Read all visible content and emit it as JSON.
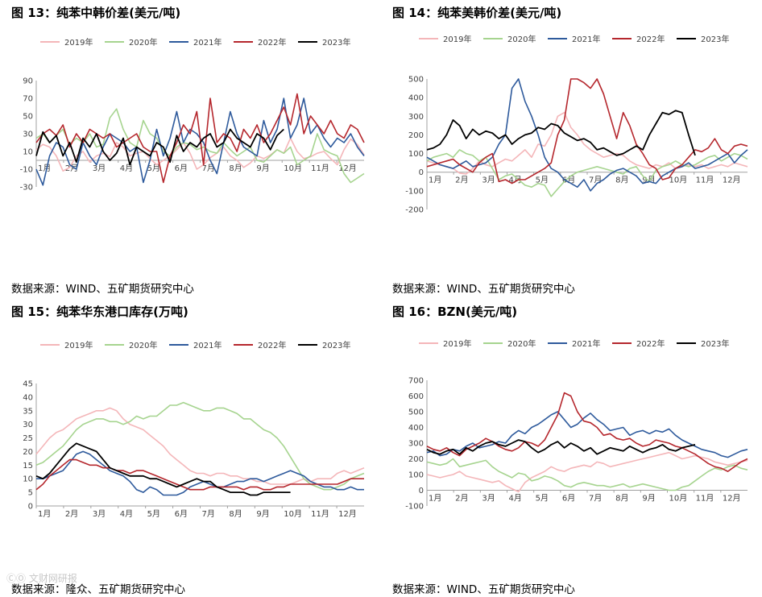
{
  "series_colors": {
    "2019年": "#f4b6b9",
    "2020年": "#a6d48f",
    "2021年": "#2e5a9c",
    "2022年": "#b5272d",
    "2023年": "#000000"
  },
  "watermark": "ⒸⓄ 文财网研报",
  "chart_data": [
    {
      "id": "fig13",
      "type": "line",
      "title": "图 13：纯苯中韩价差(美元/吨)",
      "source": "数据来源：WIND、五矿期货研究中心",
      "months": [
        "1月",
        "2月",
        "3月",
        "4月",
        "5月",
        "6月",
        "7月",
        "8月",
        "9月",
        "10月",
        "11月",
        "12月"
      ],
      "legend": [
        "2019年",
        "2020年",
        "2021年",
        "2022年",
        "2023年"
      ],
      "yticks": [
        90,
        70,
        50,
        30,
        10,
        -10,
        -30
      ],
      "ylim": [
        -30,
        90
      ],
      "series": [
        {
          "name": "2019年",
          "values": [
            12,
            18,
            15,
            5,
            -12,
            -8,
            5,
            10,
            -2,
            5,
            8,
            4,
            20,
            15,
            5,
            8,
            10,
            2,
            -5,
            0,
            5,
            12,
            20,
            8,
            -10,
            -5,
            3,
            8,
            15,
            5,
            0,
            -8,
            -3,
            5,
            2,
            6,
            12,
            8,
            25,
            10,
            2,
            4,
            8,
            10,
            2,
            -5,
            12,
            24,
            18,
            6
          ]
        },
        {
          "name": "2020年",
          "values": [
            25,
            30,
            20,
            28,
            35,
            18,
            25,
            20,
            30,
            15,
            18,
            48,
            58,
            35,
            20,
            15,
            45,
            30,
            25,
            10,
            5,
            15,
            20,
            18,
            12,
            15,
            10,
            8,
            20,
            12,
            5,
            10,
            15,
            0,
            -2,
            5,
            12,
            8,
            15,
            -5,
            0,
            5,
            30,
            12,
            8,
            5,
            -15,
            -25,
            -20,
            -15
          ]
        },
        {
          "name": "2021年",
          "values": [
            -10,
            -28,
            5,
            20,
            15,
            -5,
            -10,
            20,
            5,
            -5,
            15,
            30,
            25,
            20,
            10,
            15,
            -25,
            0,
            35,
            5,
            25,
            55,
            20,
            35,
            30,
            20,
            0,
            -15,
            20,
            55,
            30,
            15,
            10,
            5,
            45,
            20,
            35,
            70,
            25,
            40,
            70,
            30,
            40,
            25,
            15,
            25,
            20,
            30,
            15,
            5
          ]
        },
        {
          "name": "2022年",
          "values": [
            20,
            30,
            35,
            28,
            40,
            15,
            30,
            20,
            35,
            30,
            25,
            30,
            15,
            20,
            25,
            30,
            15,
            10,
            10,
            -25,
            5,
            20,
            40,
            30,
            55,
            -5,
            70,
            20,
            30,
            25,
            10,
            35,
            25,
            40,
            20,
            30,
            45,
            60,
            40,
            75,
            30,
            50,
            40,
            30,
            45,
            30,
            25,
            40,
            35,
            20
          ]
        },
        {
          "name": "2023年",
          "values": [
            5,
            32,
            20,
            28,
            5,
            20,
            -2,
            25,
            15,
            30,
            10,
            0,
            8,
            25,
            -5,
            15,
            10,
            5,
            20,
            15,
            -2,
            28,
            10,
            20,
            15,
            25,
            30,
            15,
            20,
            35,
            25,
            20,
            15,
            30,
            25,
            12,
            28,
            35
          ]
        }
      ]
    },
    {
      "id": "fig14",
      "type": "line",
      "title": "图 14：纯苯美韩价差(美元/吨)",
      "source": "数据来源：WIND、五矿期货研究中心",
      "months": [
        "1月",
        "2月",
        "3月",
        "4月",
        "5月",
        "6月",
        "7月",
        "8月",
        "9月",
        "10月",
        "11月",
        "12月"
      ],
      "legend": [
        "2019年",
        "2020年",
        "2021年",
        "2022年",
        "2023年"
      ],
      "yticks": [
        500,
        400,
        300,
        200,
        100,
        0,
        -100,
        -200
      ],
      "ylim": [
        -200,
        500
      ],
      "series": [
        {
          "name": "2019年",
          "values": [
            60,
            50,
            40,
            30,
            20,
            -5,
            -10,
            20,
            60,
            40,
            30,
            50,
            70,
            60,
            90,
            120,
            80,
            150,
            140,
            200,
            300,
            320,
            240,
            200,
            150,
            120,
            100,
            80,
            90,
            100,
            90,
            60,
            40,
            30,
            20,
            40,
            30,
            50,
            20,
            30,
            40,
            30,
            40,
            20,
            30,
            40,
            30,
            50,
            40,
            30
          ]
        },
        {
          "name": "2020年",
          "values": [
            60,
            80,
            90,
            100,
            80,
            120,
            100,
            90,
            60,
            80,
            20,
            -40,
            -20,
            -10,
            -40,
            -70,
            -80,
            -60,
            -70,
            -130,
            -90,
            -50,
            -20,
            0,
            10,
            20,
            30,
            20,
            10,
            0,
            -10,
            20,
            30,
            -20,
            -50,
            10,
            30,
            40,
            60,
            40,
            30,
            40,
            60,
            80,
            90,
            60,
            80,
            100,
            90,
            70
          ]
        },
        {
          "name": "2021年",
          "values": [
            80,
            60,
            40,
            30,
            20,
            40,
            60,
            30,
            40,
            50,
            80,
            150,
            200,
            450,
            500,
            380,
            300,
            200,
            80,
            20,
            0,
            -40,
            -60,
            -80,
            -40,
            -100,
            -60,
            -40,
            -10,
            10,
            20,
            0,
            -20,
            -60,
            -50,
            -60,
            -20,
            0,
            20,
            30,
            50,
            20,
            30,
            40,
            60,
            80,
            100,
            50,
            90,
            120
          ]
        },
        {
          "name": "2022年",
          "values": [
            30,
            40,
            50,
            60,
            70,
            40,
            20,
            0,
            50,
            80,
            100,
            -50,
            -40,
            -60,
            -40,
            -40,
            -20,
            0,
            20,
            50,
            200,
            280,
            500,
            500,
            480,
            450,
            500,
            420,
            300,
            180,
            320,
            250,
            150,
            100,
            40,
            20,
            -40,
            -30,
            20,
            40,
            80,
            120,
            110,
            130,
            180,
            120,
            100,
            140,
            150,
            140
          ]
        },
        {
          "name": "2023年",
          "values": [
            120,
            130,
            150,
            200,
            280,
            250,
            180,
            230,
            200,
            220,
            210,
            180,
            200,
            150,
            180,
            200,
            210,
            240,
            230,
            260,
            250,
            210,
            190,
            170,
            180,
            160,
            120,
            130,
            110,
            90,
            100,
            120,
            140,
            120,
            200,
            260,
            320,
            310,
            330,
            320,
            200,
            90
          ]
        }
      ]
    },
    {
      "id": "fig15",
      "type": "line",
      "title": "图 15：纯苯华东港口库存(万吨)",
      "source": "数据来源：隆众、五矿期货研究中心",
      "months": [
        "1月",
        "2月",
        "3月",
        "4月",
        "5月",
        "6月",
        "7月",
        "8月",
        "9月",
        "10月",
        "11月",
        "12月"
      ],
      "legend": [
        "2019年",
        "2020年",
        "2021年",
        "2022年",
        "2023年"
      ],
      "yticks": [
        45,
        40,
        35,
        30,
        25,
        20,
        15,
        10,
        5,
        0
      ],
      "ylim": [
        0,
        45
      ],
      "series": [
        {
          "name": "2019年",
          "values": [
            19,
            22,
            25,
            27,
            28,
            30,
            32,
            33,
            34,
            35,
            35,
            36,
            35,
            32,
            30,
            29,
            28,
            26,
            24,
            22,
            19,
            17,
            15,
            13,
            12,
            12,
            11,
            12,
            12,
            11,
            11,
            10,
            10,
            9,
            9,
            8,
            8,
            8,
            8,
            9,
            10,
            9,
            10,
            10,
            10,
            12,
            13,
            12,
            13,
            14
          ]
        },
        {
          "name": "2020年",
          "values": [
            15,
            16,
            18,
            20,
            22,
            25,
            28,
            30,
            31,
            32,
            32,
            31,
            31,
            30,
            31,
            33,
            32,
            33,
            33,
            35,
            37,
            37,
            38,
            37,
            36,
            35,
            35,
            36,
            36,
            35,
            34,
            32,
            32,
            30,
            28,
            27,
            25,
            22,
            18,
            14,
            10,
            8,
            7,
            6,
            6,
            7,
            8,
            10,
            11,
            12
          ]
        },
        {
          "name": "2021年",
          "values": [
            10,
            10,
            11,
            12,
            13,
            16,
            19,
            20,
            19,
            17,
            15,
            13,
            12,
            11,
            9,
            6,
            5,
            7,
            6,
            4,
            4,
            4,
            5,
            7,
            8,
            9,
            8,
            7,
            7,
            8,
            9,
            9,
            10,
            10,
            9,
            10,
            11,
            12,
            13,
            12,
            11,
            9,
            8,
            7,
            7,
            6,
            6,
            7,
            6,
            6
          ]
        },
        {
          "name": "2022年",
          "values": [
            6,
            8,
            11,
            13,
            15,
            17,
            17,
            16,
            15,
            15,
            14,
            14,
            13,
            13,
            12,
            13,
            13,
            12,
            11,
            10,
            9,
            8,
            7,
            6,
            6,
            6,
            7,
            7,
            7,
            7,
            7,
            6,
            7,
            7,
            6,
            6,
            7,
            7,
            8,
            8,
            8,
            8,
            8,
            8,
            8,
            8,
            9,
            10,
            10,
            10
          ]
        },
        {
          "name": "2023年",
          "values": [
            11,
            10,
            12,
            15,
            18,
            21,
            23,
            22,
            21,
            20,
            17,
            14,
            13,
            12,
            11,
            11,
            11,
            10,
            10,
            9,
            8,
            7,
            8,
            9,
            10,
            9,
            9,
            7,
            6,
            5,
            5,
            5,
            4,
            4,
            5,
            5,
            5,
            5,
            5
          ]
        }
      ]
    },
    {
      "id": "fig16",
      "type": "line",
      "title": "图 16：BZN(美元/吨)",
      "source": "数据来源：WIND、五矿期货研究中心",
      "months": [
        "1月",
        "2月",
        "3月",
        "4月",
        "5月",
        "6月",
        "7月",
        "8月",
        "9月",
        "10月",
        "11月",
        "12月"
      ],
      "legend": [
        "2019年",
        "2020年",
        "2021年",
        "2022年",
        "2023年"
      ],
      "yticks": [
        700,
        600,
        500,
        400,
        300,
        200,
        100,
        0,
        -100
      ],
      "ylim": [
        -100,
        700
      ],
      "series": [
        {
          "name": "2019年",
          "values": [
            100,
            90,
            80,
            90,
            100,
            120,
            90,
            80,
            70,
            60,
            50,
            60,
            30,
            10,
            -10,
            50,
            80,
            100,
            120,
            150,
            130,
            120,
            140,
            150,
            160,
            150,
            180,
            170,
            150,
            160,
            170,
            180,
            190,
            200,
            210,
            220,
            230,
            240,
            220,
            200,
            210,
            220,
            210,
            200,
            180,
            170,
            160,
            170,
            180,
            190
          ]
        },
        {
          "name": "2020年",
          "values": [
            180,
            170,
            160,
            170,
            200,
            150,
            160,
            170,
            180,
            190,
            150,
            120,
            100,
            80,
            110,
            100,
            60,
            70,
            90,
            80,
            60,
            30,
            20,
            40,
            50,
            40,
            30,
            30,
            20,
            30,
            40,
            20,
            30,
            40,
            30,
            20,
            10,
            0,
            0,
            20,
            30,
            60,
            90,
            120,
            140,
            130,
            150,
            160,
            140,
            130
          ]
        },
        {
          "name": "2021年",
          "values": [
            240,
            250,
            220,
            230,
            260,
            250,
            280,
            300,
            270,
            280,
            290,
            310,
            300,
            350,
            380,
            360,
            400,
            420,
            450,
            480,
            500,
            450,
            400,
            420,
            460,
            490,
            450,
            420,
            380,
            390,
            400,
            350,
            370,
            380,
            360,
            380,
            370,
            390,
            350,
            320,
            300,
            280,
            260,
            250,
            240,
            220,
            210,
            230,
            250,
            260
          ]
        },
        {
          "name": "2022年",
          "values": [
            280,
            260,
            250,
            270,
            240,
            220,
            260,
            280,
            300,
            330,
            310,
            280,
            260,
            250,
            270,
            310,
            300,
            280,
            320,
            400,
            480,
            620,
            600,
            500,
            440,
            430,
            400,
            350,
            360,
            330,
            320,
            330,
            300,
            280,
            290,
            320,
            310,
            300,
            280,
            270,
            250,
            230,
            200,
            170,
            150,
            140,
            120,
            150,
            180,
            200
          ]
        },
        {
          "name": "2023年",
          "values": [
            260,
            240,
            230,
            250,
            260,
            230,
            270,
            250,
            280,
            300,
            310,
            290,
            280,
            300,
            320,
            310,
            270,
            240,
            260,
            290,
            310,
            270,
            300,
            280,
            250,
            270,
            230,
            250,
            270,
            260,
            250,
            280,
            260,
            240,
            260,
            270,
            290,
            260,
            250,
            270,
            280,
            290
          ]
        }
      ]
    }
  ]
}
